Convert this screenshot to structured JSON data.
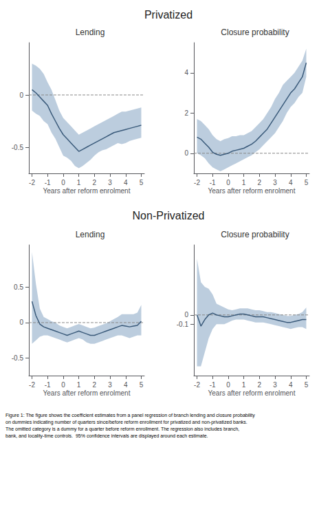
{
  "chart_data": [
    {
      "type": "line",
      "title": "Lending",
      "xlabel": "Years after reform enrolment",
      "x": [
        -2.0,
        -1.75,
        -1.5,
        -1.25,
        -1.0,
        -0.75,
        -0.5,
        -0.25,
        0.0,
        0.25,
        0.5,
        0.75,
        1.0,
        1.25,
        1.5,
        1.75,
        2.0,
        2.25,
        2.5,
        2.75,
        3.0,
        3.25,
        3.5,
        3.75,
        4.0,
        4.25,
        4.5,
        4.75,
        5.0
      ],
      "xlim": [
        -2.2,
        5.2
      ],
      "xticks": [
        -2,
        -1,
        0,
        1,
        2,
        3,
        4,
        5
      ],
      "ylim": [
        -0.75,
        0.5
      ],
      "yticks": [
        -0.5,
        0
      ],
      "grid": false,
      "series": [
        {
          "type": "band",
          "color": "#b0c4d8",
          "lower": [
            -0.15,
            -0.18,
            -0.2,
            -0.25,
            -0.28,
            -0.36,
            -0.42,
            -0.5,
            -0.58,
            -0.6,
            -0.63,
            -0.68,
            -0.7,
            -0.68,
            -0.65,
            -0.62,
            -0.58,
            -0.55,
            -0.53,
            -0.52,
            -0.5,
            -0.48,
            -0.46,
            -0.47,
            -0.46,
            -0.44,
            -0.43,
            -0.42,
            -0.41
          ],
          "upper": [
            0.3,
            0.28,
            0.25,
            0.2,
            0.12,
            0.05,
            -0.05,
            -0.15,
            -0.22,
            -0.26,
            -0.3,
            -0.34,
            -0.38,
            -0.36,
            -0.34,
            -0.32,
            -0.3,
            -0.28,
            -0.26,
            -0.24,
            -0.22,
            -0.2,
            -0.18,
            -0.16,
            -0.16,
            -0.15,
            -0.14,
            -0.13,
            -0.12
          ]
        },
        {
          "type": "line",
          "color": "#3a5a7a",
          "values": [
            0.05,
            0.02,
            -0.02,
            -0.06,
            -0.1,
            -0.18,
            -0.25,
            -0.32,
            -0.38,
            -0.42,
            -0.46,
            -0.5,
            -0.54,
            -0.52,
            -0.5,
            -0.48,
            -0.46,
            -0.44,
            -0.42,
            -0.4,
            -0.38,
            -0.36,
            -0.35,
            -0.34,
            -0.33,
            -0.32,
            -0.31,
            -0.3,
            -0.29
          ]
        },
        {
          "type": "hline",
          "y": 0,
          "color": "#888888",
          "line_style": "dashed"
        }
      ]
    },
    {
      "type": "line",
      "title": "Closure probability",
      "xlabel": "Years after reform enrolment",
      "x": [
        -2.0,
        -1.75,
        -1.5,
        -1.25,
        -1.0,
        -0.75,
        -0.5,
        -0.25,
        0.0,
        0.25,
        0.5,
        0.75,
        1.0,
        1.25,
        1.5,
        1.75,
        2.0,
        2.25,
        2.5,
        2.75,
        3.0,
        3.25,
        3.5,
        3.75,
        4.0,
        4.25,
        4.5,
        4.75,
        5.0
      ],
      "xlim": [
        -2.2,
        5.2
      ],
      "xticks": [
        -2,
        -1,
        0,
        1,
        2,
        3,
        4,
        5
      ],
      "ylim": [
        -1.0,
        5.5
      ],
      "yticks": [
        0,
        2,
        4
      ],
      "grid": false,
      "series": [
        {
          "type": "band",
          "color": "#b0c4d8",
          "lower": [
            0.0,
            -0.1,
            -0.25,
            -0.5,
            -0.7,
            -0.8,
            -0.9,
            -0.8,
            -0.7,
            -0.6,
            -0.5,
            -0.4,
            -0.3,
            -0.2,
            -0.1,
            0.05,
            0.2,
            0.4,
            0.6,
            0.8,
            1.0,
            1.3,
            1.6,
            2.0,
            2.3,
            2.5,
            2.8,
            3.0,
            3.8
          ],
          "upper": [
            1.7,
            1.6,
            1.4,
            1.2,
            0.9,
            0.7,
            0.6,
            0.7,
            0.75,
            0.85,
            0.85,
            0.9,
            0.9,
            1.0,
            1.1,
            1.3,
            1.5,
            1.7,
            2.0,
            2.3,
            2.7,
            3.0,
            3.4,
            3.6,
            3.8,
            4.0,
            4.3,
            4.6,
            5.2
          ]
        },
        {
          "type": "line",
          "color": "#3a5a7a",
          "values": [
            0.8,
            0.7,
            0.5,
            0.3,
            0.05,
            -0.05,
            -0.1,
            -0.05,
            0.0,
            0.1,
            0.15,
            0.2,
            0.25,
            0.35,
            0.45,
            0.6,
            0.8,
            1.0,
            1.2,
            1.5,
            1.8,
            2.1,
            2.4,
            2.7,
            3.0,
            3.2,
            3.5,
            3.8,
            4.5
          ]
        },
        {
          "type": "hline",
          "y": 0,
          "color": "#888888",
          "line_style": "dashed"
        }
      ]
    },
    {
      "type": "line",
      "title": "Lending",
      "xlabel": "Years after reform enrolment",
      "x": [
        -2.0,
        -1.75,
        -1.5,
        -1.25,
        -1.0,
        -0.75,
        -0.5,
        -0.25,
        0.0,
        0.25,
        0.5,
        0.75,
        1.0,
        1.25,
        1.5,
        1.75,
        2.0,
        2.25,
        2.5,
        2.75,
        3.0,
        3.25,
        3.5,
        3.75,
        4.0,
        4.25,
        4.5,
        4.75,
        5.0
      ],
      "xlim": [
        -2.2,
        5.2
      ],
      "xticks": [
        -2,
        -1,
        0,
        1,
        2,
        3,
        4,
        5
      ],
      "ylim": [
        -0.75,
        1.1
      ],
      "yticks": [
        -0.5,
        0,
        0.5
      ],
      "grid": false,
      "series": [
        {
          "type": "band",
          "color": "#b0c4d8",
          "lower": [
            -0.3,
            -0.25,
            -0.2,
            -0.18,
            -0.18,
            -0.2,
            -0.22,
            -0.24,
            -0.26,
            -0.28,
            -0.26,
            -0.24,
            -0.22,
            -0.24,
            -0.28,
            -0.3,
            -0.3,
            -0.28,
            -0.26,
            -0.24,
            -0.22,
            -0.2,
            -0.18,
            -0.18,
            -0.2,
            -0.22,
            -0.2,
            -0.18,
            -0.18
          ],
          "upper": [
            1.0,
            0.55,
            0.2,
            0.08,
            0.05,
            0.02,
            0.0,
            -0.04,
            -0.06,
            -0.08,
            -0.06,
            -0.04,
            -0.02,
            -0.04,
            -0.06,
            -0.08,
            -0.07,
            -0.05,
            -0.03,
            -0.01,
            0.02,
            0.05,
            0.08,
            0.12,
            0.12,
            0.12,
            0.12,
            0.14,
            0.25
          ]
        },
        {
          "type": "line",
          "color": "#3a5a7a",
          "values": [
            0.3,
            0.1,
            -0.02,
            -0.06,
            -0.08,
            -0.1,
            -0.12,
            -0.14,
            -0.16,
            -0.18,
            -0.16,
            -0.14,
            -0.12,
            -0.14,
            -0.16,
            -0.18,
            -0.18,
            -0.16,
            -0.14,
            -0.12,
            -0.1,
            -0.08,
            -0.06,
            -0.04,
            -0.05,
            -0.06,
            -0.05,
            -0.04,
            0.02
          ]
        },
        {
          "type": "hline",
          "y": 0,
          "color": "#888888",
          "line_style": "dashed"
        }
      ]
    },
    {
      "type": "line",
      "title": "Closure probability",
      "xlabel": "Years after reform enrolment",
      "x": [
        -2.0,
        -1.75,
        -1.5,
        -1.25,
        -1.0,
        -0.75,
        -0.5,
        -0.25,
        0.0,
        0.25,
        0.5,
        0.75,
        1.0,
        1.25,
        1.5,
        1.75,
        2.0,
        2.25,
        2.5,
        2.75,
        3.0,
        3.25,
        3.5,
        3.75,
        4.0,
        4.25,
        4.5,
        4.75,
        5.0
      ],
      "xlim": [
        -2.2,
        5.2
      ],
      "xticks": [
        -2,
        -1,
        0,
        1,
        2,
        3,
        4,
        5
      ],
      "ylim": [
        -0.65,
        0.75
      ],
      "yticks": [
        -0.1,
        0
      ],
      "grid": false,
      "series": [
        {
          "type": "band",
          "color": "#b0c4d8",
          "lower": [
            -0.55,
            -0.55,
            -0.4,
            -0.25,
            -0.15,
            -0.1,
            -0.1,
            -0.1,
            -0.08,
            -0.06,
            -0.05,
            -0.05,
            -0.05,
            -0.06,
            -0.07,
            -0.08,
            -0.08,
            -0.08,
            -0.09,
            -0.1,
            -0.11,
            -0.12,
            -0.13,
            -0.14,
            -0.15,
            -0.14,
            -0.13,
            -0.13,
            -0.15
          ],
          "upper": [
            0.6,
            0.35,
            0.3,
            0.28,
            0.22,
            0.12,
            0.1,
            0.08,
            0.06,
            0.05,
            0.06,
            0.07,
            0.07,
            0.07,
            0.06,
            0.05,
            0.05,
            0.04,
            0.03,
            0.03,
            0.02,
            0.01,
            0.0,
            -0.01,
            -0.01,
            0.0,
            0.01,
            0.03,
            0.08
          ]
        },
        {
          "type": "line",
          "color": "#3a5a7a",
          "values": [
            0.0,
            -0.12,
            -0.05,
            0.0,
            0.02,
            0.0,
            -0.01,
            -0.02,
            -0.02,
            -0.01,
            0.0,
            0.01,
            0.01,
            0.0,
            -0.01,
            -0.02,
            -0.02,
            -0.02,
            -0.03,
            -0.04,
            -0.05,
            -0.06,
            -0.07,
            -0.08,
            -0.08,
            -0.07,
            -0.06,
            -0.05,
            -0.05
          ]
        },
        {
          "type": "hline",
          "y": 0,
          "color": "#888888",
          "line_style": "dashed"
        }
      ]
    }
  ],
  "annotations": [
    "Privatized",
    "Non-Privatized",
    "Figure 1: The figure shows the coefficient estimates from a panel regression of branch lending and closure probability\non dummies indicating number of quarters since/before reform enrollment for privatized and non-privatized banks.\nThe omitted category is a dummy for a quarter before reform enrollment. The regression also includes branch,\nbank, and locality-time controls.  95% confidence intervals are displayed around each estimate."
  ]
}
